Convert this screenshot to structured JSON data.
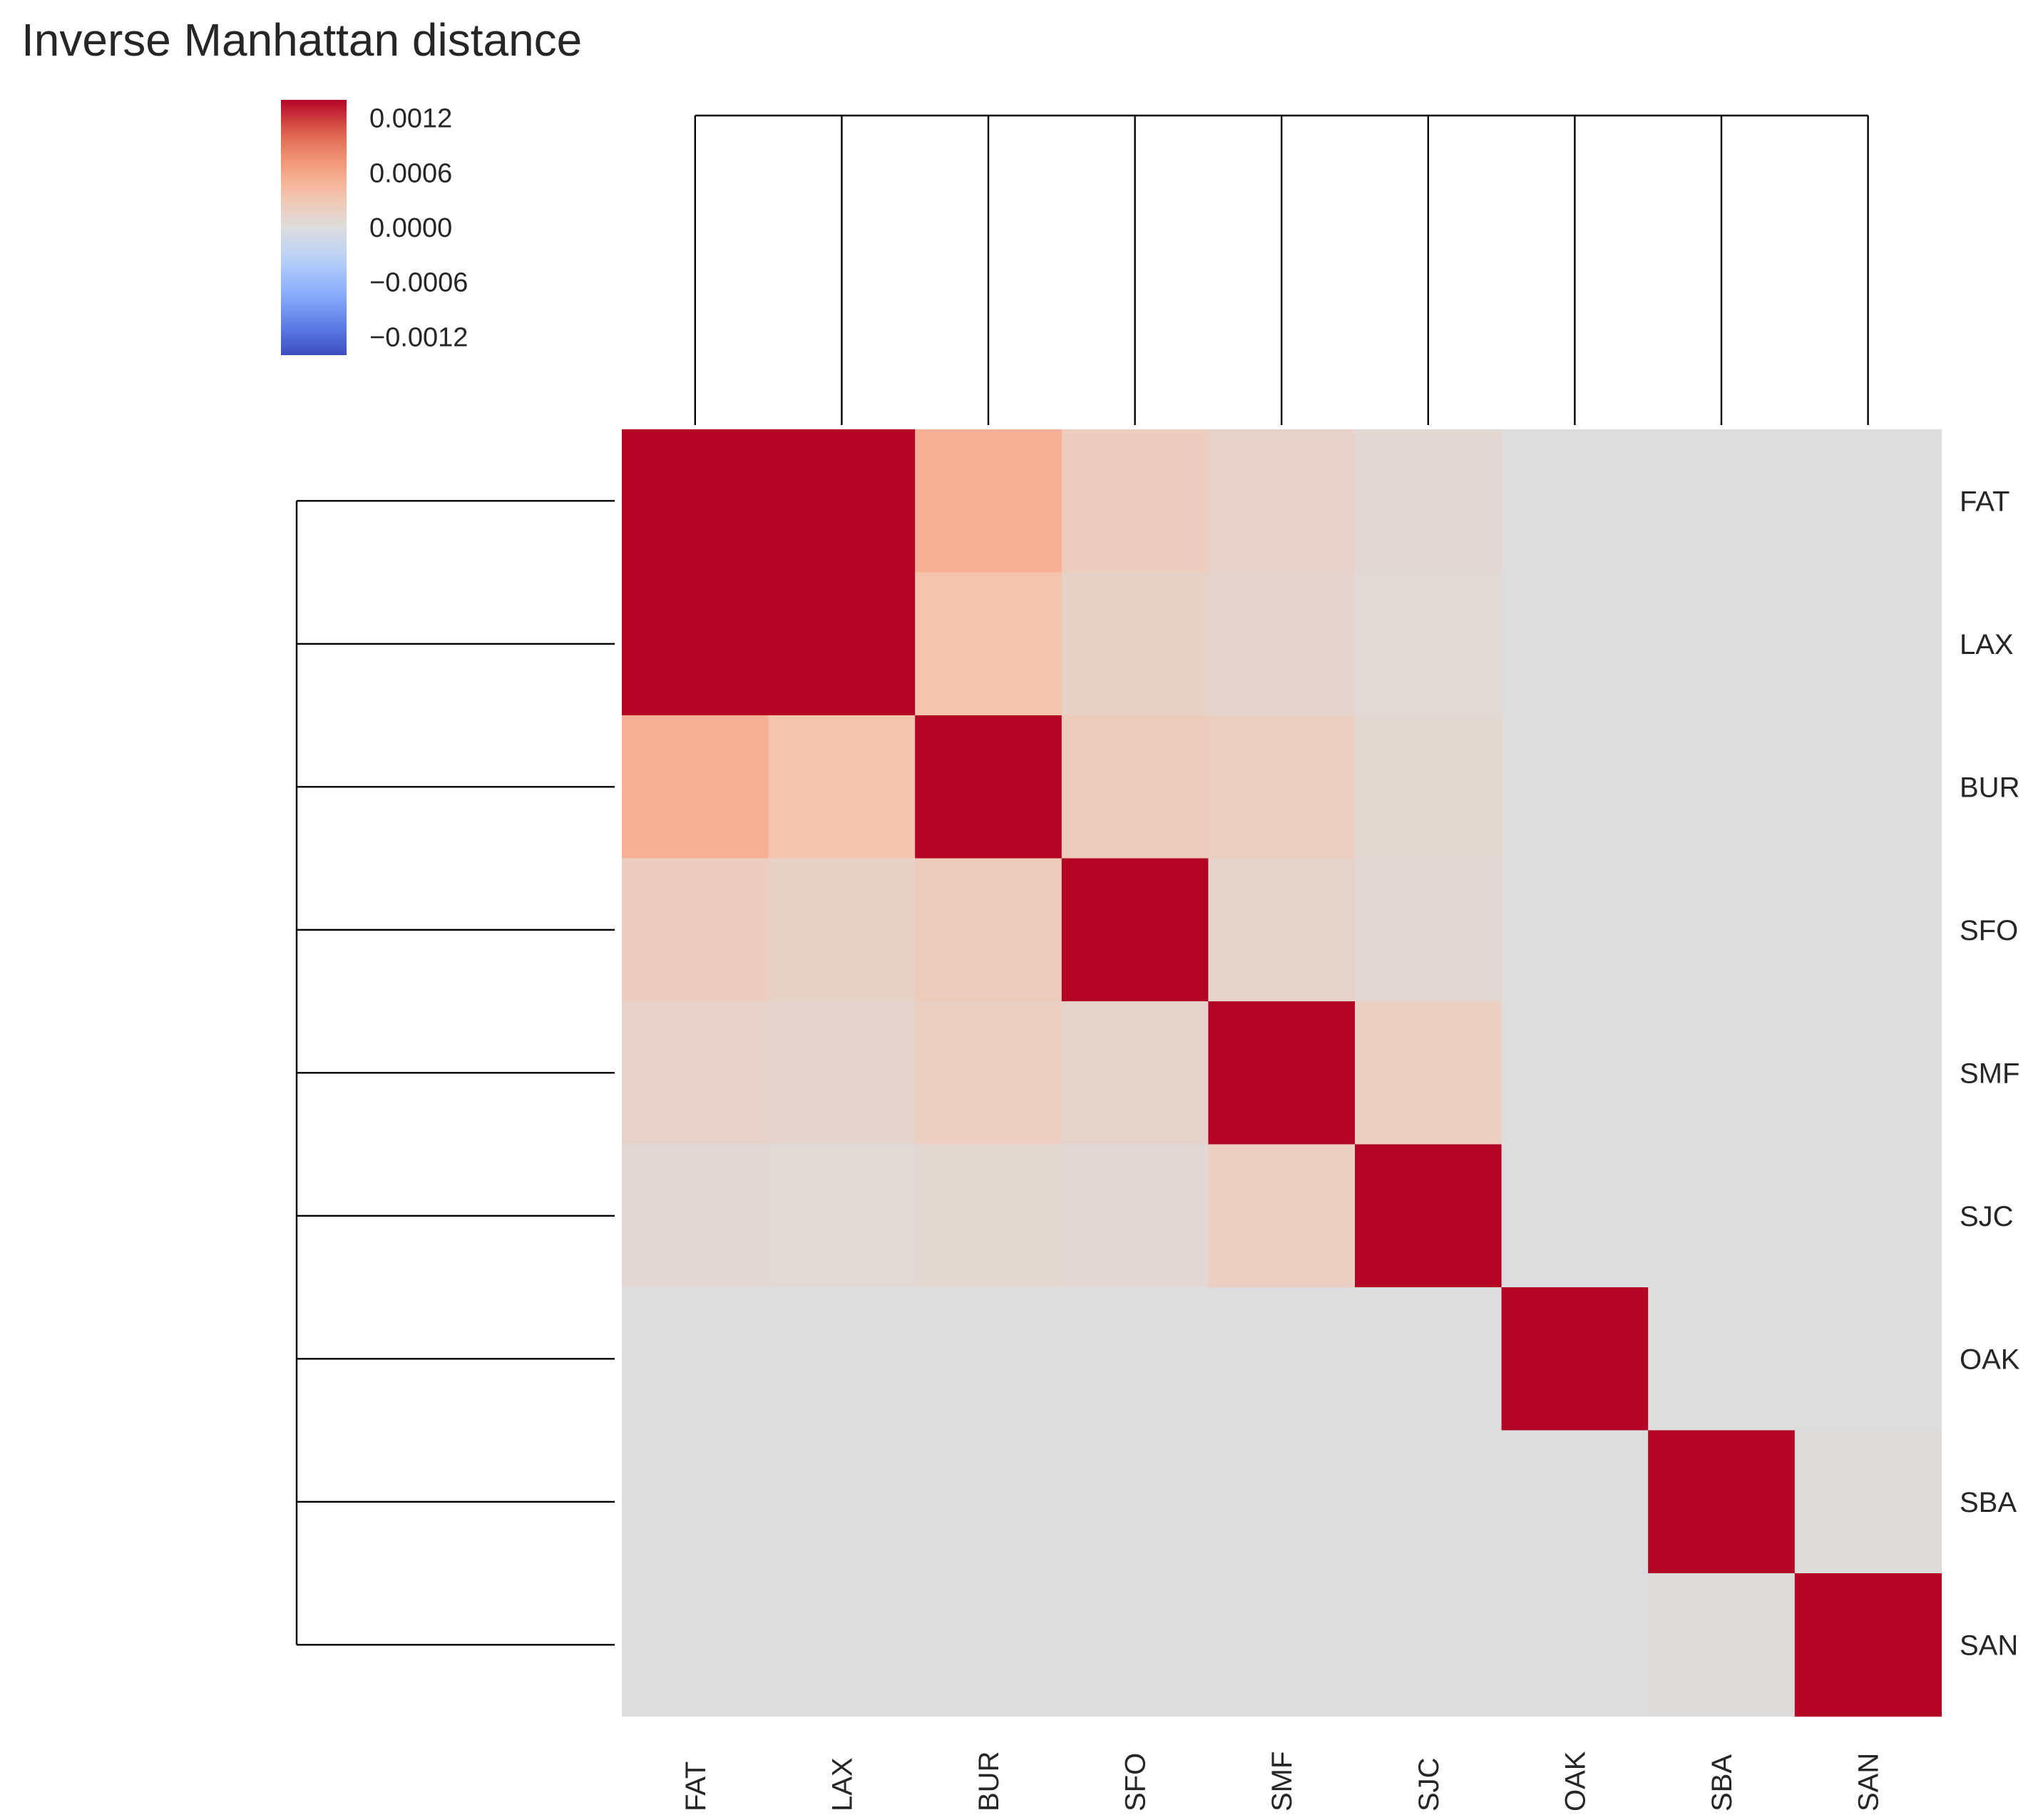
{
  "chart_data": {
    "type": "heatmap",
    "title": "Inverse Manhattan distance",
    "rows": [
      "FAT",
      "LAX",
      "BUR",
      "SFO",
      "SMF",
      "SJC",
      "OAK",
      "SBA",
      "SAN"
    ],
    "columns": [
      "FAT",
      "LAX",
      "BUR",
      "SFO",
      "SMF",
      "SJC",
      "OAK",
      "SBA",
      "SAN"
    ],
    "values": [
      [
        0.0016,
        0.0016,
        0.00052,
        0.00022,
        0.00014,
        7e-05,
        0,
        0,
        0
      ],
      [
        0.0016,
        0.0016,
        0.00035,
        0.00015,
        0.00012,
        6e-05,
        0,
        0,
        0
      ],
      [
        0.00052,
        0.00035,
        0.0016,
        0.00024,
        0.0002,
        9e-05,
        0,
        0,
        0
      ],
      [
        0.00022,
        0.00015,
        0.00024,
        0.0016,
        0.00013,
        8e-05,
        0,
        0,
        0
      ],
      [
        0.00014,
        0.00012,
        0.0002,
        0.00013,
        0.0016,
        0.0002,
        0,
        0,
        0
      ],
      [
        7e-05,
        6e-05,
        9e-05,
        8e-05,
        0.0002,
        0.0016,
        0,
        0,
        0
      ],
      [
        0,
        0,
        0,
        0,
        0,
        0,
        0.0016,
        0,
        0
      ],
      [
        0,
        0,
        0,
        0,
        0,
        0,
        0,
        0.0016,
        2e-05
      ],
      [
        0,
        0,
        0,
        0,
        0,
        0,
        0,
        2e-05,
        0.0016
      ]
    ],
    "colormap": "coolwarm",
    "vmin": -0.0014,
    "vmax": 0.0014,
    "colorbar_ticks": [
      {
        "value": 0.0012,
        "label": "0.0012"
      },
      {
        "value": 0.0006,
        "label": "0.0006"
      },
      {
        "value": 0.0,
        "label": "0.0000"
      },
      {
        "value": -0.0006,
        "label": "−0.0006"
      },
      {
        "value": -0.0012,
        "label": "−0.0012"
      }
    ],
    "dendrogram": "flat; all leaves joined at one level on both row and column sides",
    "grid": false
  }
}
